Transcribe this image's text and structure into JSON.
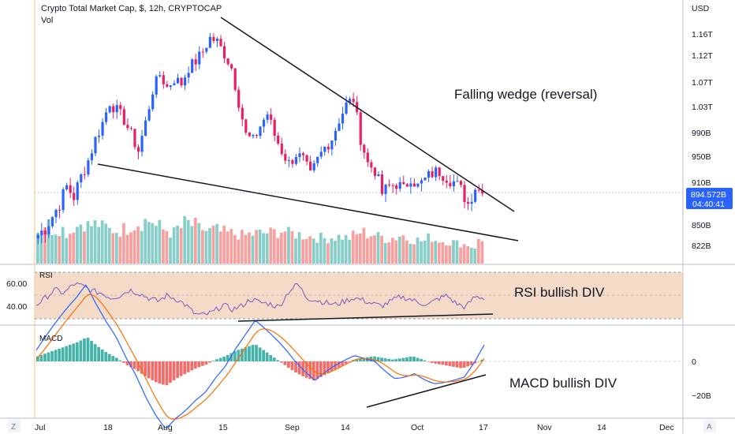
{
  "header": {
    "title": "Crypto Total Market Cap, $, 12h, CRYPTOCAP",
    "vol_label": "Vol"
  },
  "price_axis": {
    "currency": "USD",
    "ticks": [
      "1.16T",
      "1.12T",
      "1.07T",
      "1.03T",
      "990B",
      "950B",
      "910B",
      "850B",
      "822B"
    ],
    "last_price": "894.572B",
    "countdown": "04:40:41"
  },
  "rsi_pane": {
    "label": "RSI",
    "ticks": [
      "60.00",
      "40.00"
    ]
  },
  "macd_pane": {
    "label": "MACD",
    "ticks": [
      "0",
      "−20B"
    ]
  },
  "time_axis": {
    "labels": [
      "Jul",
      "18",
      "Aug",
      "15",
      "Sep",
      "14",
      "Oct",
      "17",
      "Nov",
      "14",
      "Dec"
    ],
    "left_button": "Z",
    "right_button": "A"
  },
  "annotations": {
    "wedge": "Falling wedge (reversal)",
    "rsi": "RSI bullish DIV",
    "macd": "MACD bullish DIV"
  },
  "colors": {
    "up": "#26a69a",
    "down": "#ef5350",
    "candle_up": "#2962ff",
    "candle_down": "#e91e63",
    "rsi_line": "#7e57c2",
    "rsi_band": "#efcfb4",
    "macd_line": "#2962ff",
    "signal_line": "#ff6d00",
    "price_tag": "#2962ff",
    "session_line": "#f5c77e"
  },
  "chart_data": {
    "type": "candlestick",
    "x_range": [
      "Jul",
      "Oct 17"
    ],
    "price_close_path": [
      836,
      845,
      862,
      880,
      905,
      890,
      920,
      945,
      978,
      1005,
      1040,
      1025,
      1010,
      985,
      960,
      1005,
      1060,
      1088,
      1065,
      1080,
      1072,
      1100,
      1112,
      1130,
      1155,
      1148,
      1125,
      1100,
      1040,
      985,
      975,
      1000,
      1020,
      985,
      960,
      940,
      955,
      945,
      920,
      945,
      965,
      980,
      1010,
      1035,
      1045,
      980,
      940,
      930,
      895,
      905,
      910,
      900,
      920,
      905,
      915,
      925,
      928,
      920,
      912,
      900,
      880,
      905,
      894.572
    ],
    "rsi_path": [
      42,
      48,
      55,
      52,
      60,
      58,
      54,
      52,
      48,
      50,
      55,
      52,
      48,
      45,
      50,
      47,
      42,
      34,
      33,
      36,
      42,
      38,
      41,
      47,
      44,
      43,
      40,
      53,
      60,
      48,
      46,
      44,
      42,
      45,
      48,
      46,
      43,
      41,
      45,
      49,
      47,
      44,
      42,
      47,
      50,
      43,
      40,
      49,
      48
    ],
    "macd_hist": [
      3,
      5,
      7,
      9,
      11,
      14,
      9,
      5,
      2,
      -2,
      -5,
      -9,
      -12,
      -14,
      -10,
      -7,
      -4,
      -2,
      1,
      3,
      6,
      8,
      10,
      6,
      2,
      -2,
      -6,
      -9,
      -11,
      -8,
      -5,
      -2,
      1,
      2,
      3,
      2,
      1,
      2,
      3,
      1,
      -1,
      -2,
      -3,
      -4,
      -2,
      1
    ],
    "volume": [
      58,
      70,
      60,
      62,
      55,
      66,
      72,
      68,
      70,
      65,
      60,
      58,
      62,
      68,
      72,
      76,
      66,
      60,
      55,
      63,
      72,
      68,
      62,
      58,
      60,
      56,
      54,
      52,
      50,
      52,
      54,
      55,
      56,
      58,
      54,
      52,
      50,
      48,
      46,
      45,
      47,
      48,
      46,
      50,
      56,
      52,
      48,
      44,
      46,
      50,
      44,
      42,
      40,
      46,
      42,
      40,
      38,
      36,
      34,
      30,
      40
    ]
  }
}
